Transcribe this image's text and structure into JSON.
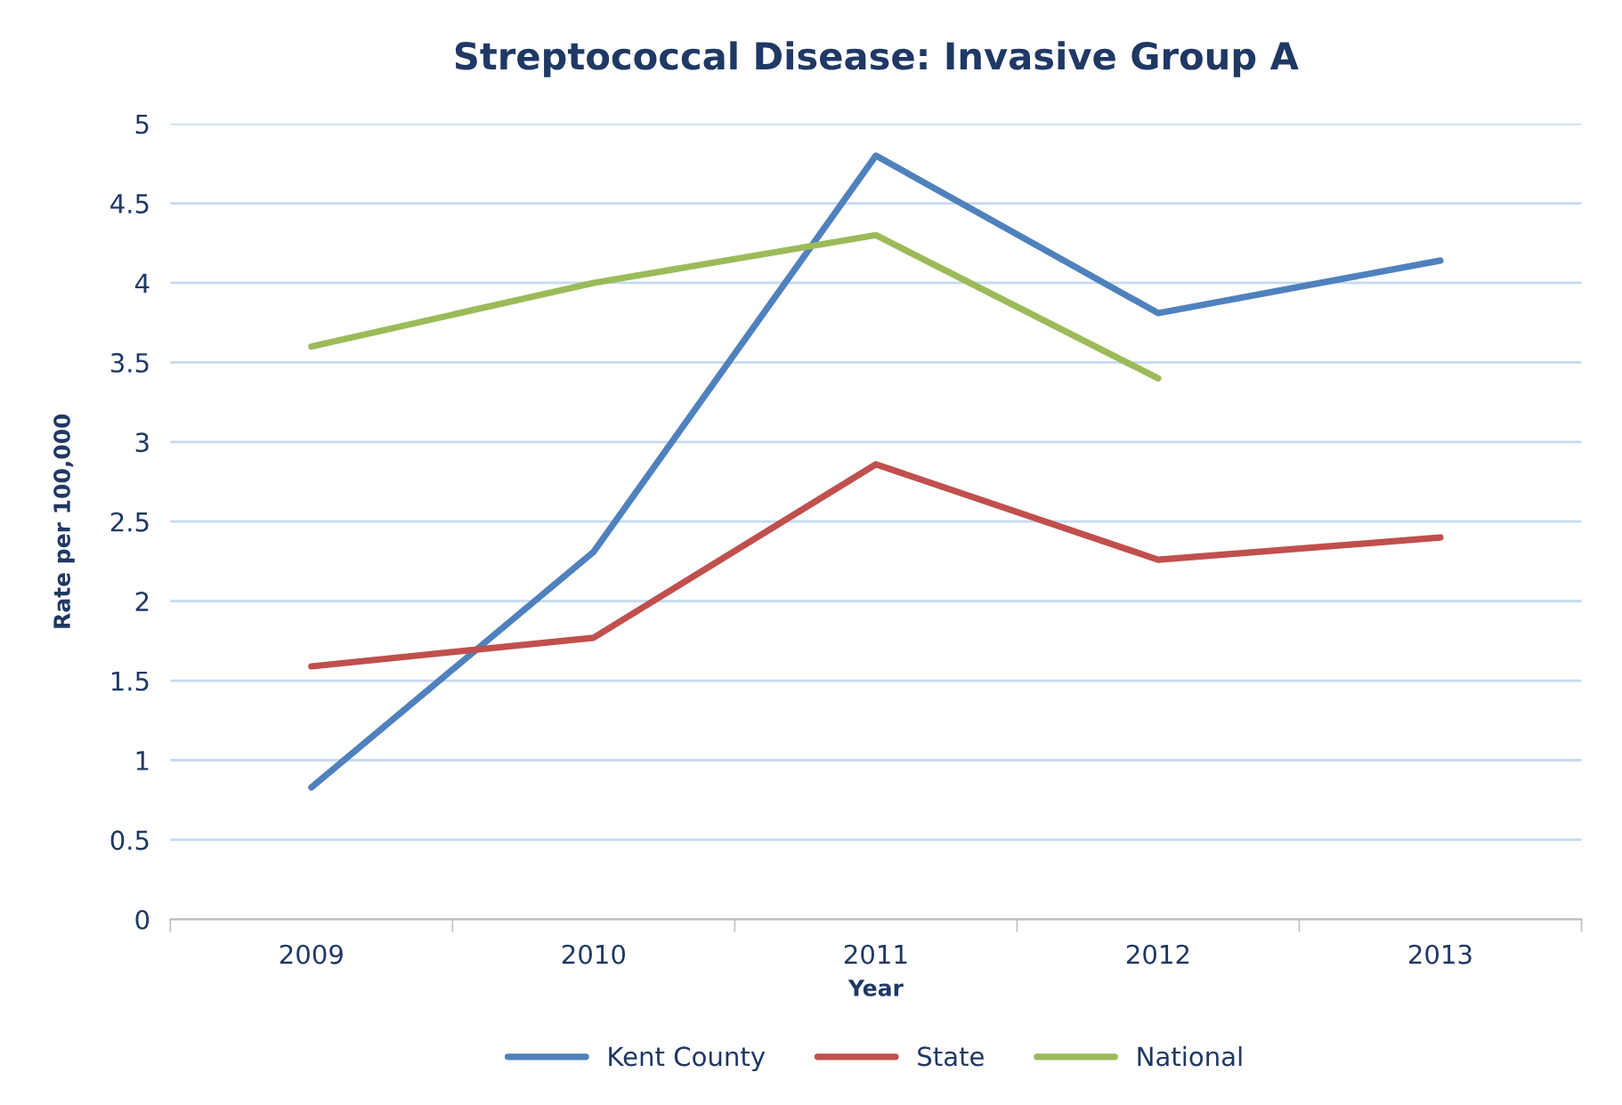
{
  "chart_data": {
    "type": "line",
    "title": "Streptococcal Disease: Invasive Group A",
    "xlabel": "Year",
    "ylabel": "Rate per 100,000",
    "categories": [
      "2009",
      "2010",
      "2011",
      "2012",
      "2013"
    ],
    "series": [
      {
        "name": "Kent County",
        "color": "#4f81bd",
        "values": [
          0.83,
          2.31,
          4.8,
          3.81,
          4.14
        ]
      },
      {
        "name": "State",
        "color": "#c0504d",
        "values": [
          1.59,
          1.77,
          2.86,
          2.26,
          2.4
        ]
      },
      {
        "name": "National",
        "color": "#9bbb59",
        "values": [
          3.6,
          4.0,
          4.3,
          3.4,
          null
        ]
      }
    ],
    "ylim": [
      0,
      5
    ],
    "yticks": [
      0,
      0.5,
      1,
      1.5,
      2,
      2.5,
      3,
      3.5,
      4,
      4.5,
      5
    ],
    "grid": "y",
    "legend": "bottom",
    "marker": "none",
    "line_style": "solid"
  }
}
